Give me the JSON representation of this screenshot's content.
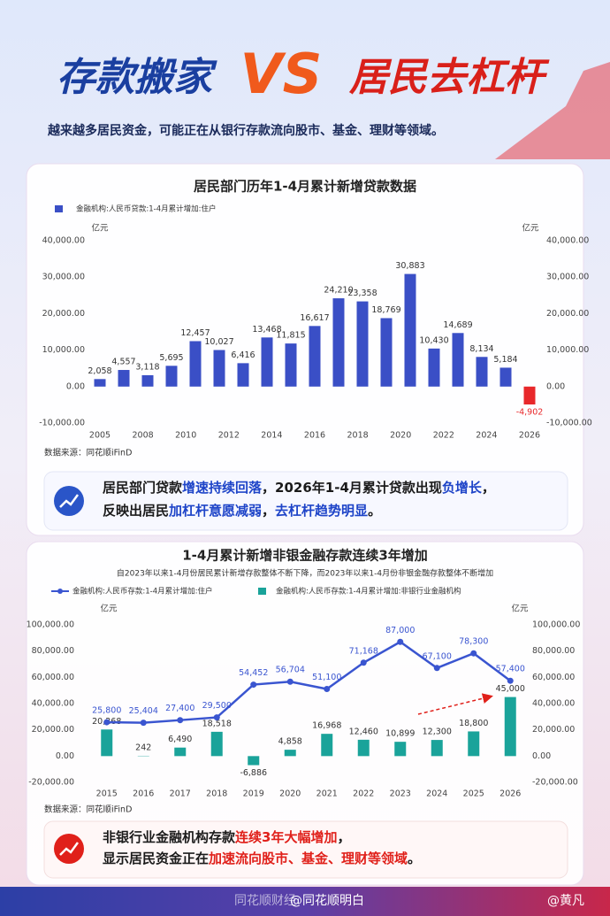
{
  "header": {
    "title_left": "存款搬家",
    "vs": "VS",
    "title_right": "居民去杠杆",
    "subtitle": "越来越多居民资金，可能正在从银行存款流向股市、基金、理财等领域。"
  },
  "chart_data": [
    {
      "type": "bar",
      "title": "居民部门历年1-4月累计新增贷款数据",
      "xticks": [
        "2005",
        "2008",
        "2010",
        "2012",
        "2014",
        "2016",
        "2018",
        "2020",
        "2022",
        "2024",
        "2026"
      ],
      "series": [
        {
          "name": "金融机构:人民币贷款:1-4月累计增加:住户",
          "color": "#3a4fc6",
          "negative_color": "#e8282b",
          "values": [
            2058,
            4557,
            3118,
            5695,
            12457,
            10027,
            6416,
            13468,
            11815,
            16617,
            24210,
            23358,
            18769,
            30883,
            10430,
            14689,
            8134,
            5184,
            -4902
          ],
          "value_labels": [
            "2,058",
            "4,557",
            "3,118",
            "5,695",
            "12,457",
            "10,027",
            "6,416",
            "13,468",
            "11,815",
            "16,617",
            "24,210",
            "23,358",
            "18,769",
            "30,883",
            "10,430",
            "14,689",
            "8,134",
            "5,184",
            "-4,902"
          ]
        }
      ],
      "ylabel": "亿元",
      "y2label": "亿元",
      "ylim": [
        -10000,
        40000
      ],
      "yticks": [
        {
          "value": -10000,
          "label": "-10,000.00"
        },
        {
          "value": 0,
          "label": "0.00"
        },
        {
          "value": 10000,
          "label": "10,000.00"
        },
        {
          "value": 20000,
          "label": "20,000.00"
        },
        {
          "value": 30000,
          "label": "30,000.00"
        },
        {
          "value": 40000,
          "label": "40,000.00"
        }
      ],
      "y2lim": [
        -10000,
        40000
      ],
      "y2ticks": [
        {
          "value": -10000,
          "label": "-10,000.00"
        },
        {
          "value": 0,
          "label": "0.00"
        },
        {
          "value": 10000,
          "label": "10,000.00"
        },
        {
          "value": 20000,
          "label": "20,000.00"
        },
        {
          "value": 30000,
          "label": "30,000.00"
        },
        {
          "value": 40000,
          "label": "40,000.00"
        }
      ],
      "source": "数据来源：同花顺iFinD",
      "note": [
        [
          {
            "text": "居民部门贷款",
            "color": "#1a1a1a"
          },
          {
            "text": "增速持续回落",
            "color": "#1e44c8"
          },
          {
            "text": "，2026年1-4月累计贷款出现",
            "color": "#1a1a1a"
          },
          {
            "text": "负增长",
            "color": "#1e44c8"
          },
          {
            "text": "，",
            "color": "#1a1a1a"
          }
        ],
        [
          {
            "text": "反映出居民",
            "color": "#1a1a1a"
          },
          {
            "text": "加杠杆意愿减弱",
            "color": "#1e44c8"
          },
          {
            "text": "，",
            "color": "#1a1a1a"
          },
          {
            "text": "去杠杆趋势明显",
            "color": "#1e44c8"
          },
          {
            "text": "。",
            "color": "#1a1a1a"
          }
        ]
      ],
      "note_icon_color": "#2a55c8"
    },
    {
      "type": "combo",
      "title": "1-4月累计新增非银金融存款连续3年增加",
      "subtitle": "自2023年以来1-4月份居民累计新增存款整体不断下降，而2023年以来1-4月份非银金融存款整体不断增加",
      "categories": [
        "2015",
        "2016",
        "2017",
        "2018",
        "2019",
        "2020",
        "2021",
        "2022",
        "2023",
        "2024",
        "2025",
        "2026"
      ],
      "series": [
        {
          "name": "金融机构:人民币存款:1-4月累计增加:住户",
          "type": "line",
          "color": "#3a55d0",
          "values": [
            25800,
            25404,
            27400,
            29500,
            54452,
            56704,
            51100,
            71168,
            87000,
            67100,
            78300,
            57400
          ],
          "value_labels": [
            "25,800",
            "25,404",
            "27,400",
            "29,500",
            "54,452",
            "56,704",
            "51,100",
            "71,168",
            "87,000",
            "67,100",
            "78,300",
            "57,400"
          ]
        },
        {
          "name": "金融机构:人民币存款:1-4月累计增加:非银行业金融机构",
          "type": "bar",
          "color": "#1aa39a",
          "values": [
            20268,
            242,
            6490,
            18518,
            -6886,
            4858,
            16968,
            12460,
            10899,
            12300,
            18800,
            45000
          ],
          "value_labels": [
            "20,268",
            "242",
            "6,490",
            "18,518",
            "-6,886",
            "4,858",
            "16,968",
            "12,460",
            "10,899",
            "12,300",
            "18,800",
            "45,000"
          ]
        }
      ],
      "ylabel": "亿元",
      "y2label": "亿元",
      "ylim": [
        -20000,
        100000
      ],
      "yticks": [
        {
          "value": -20000,
          "label": "-20,000.00"
        },
        {
          "value": 0,
          "label": "0.00"
        },
        {
          "value": 20000,
          "label": "20,000.00"
        },
        {
          "value": 40000,
          "label": "40,000.00"
        },
        {
          "value": 60000,
          "label": "60,000.00"
        },
        {
          "value": 80000,
          "label": "80,000.00"
        },
        {
          "value": 100000,
          "label": "100,000.00"
        }
      ],
      "y2lim": [
        -20000,
        100000
      ],
      "y2ticks": [
        {
          "value": -20000,
          "label": "-20,000.00"
        },
        {
          "value": 0,
          "label": "0.00"
        },
        {
          "value": 20000,
          "label": "20,000.00"
        },
        {
          "value": 40000,
          "label": "40,000.00"
        },
        {
          "value": 60000,
          "label": "60,000.00"
        },
        {
          "value": 80000,
          "label": "80,000.00"
        },
        {
          "value": 100000,
          "label": "100,000.00"
        }
      ],
      "source": "数据来源：同花顺iFinD",
      "note": [
        [
          {
            "text": "非银行业金融机构存款",
            "color": "#1a1a1a"
          },
          {
            "text": "连续3年大幅增加",
            "color": "#e0201a"
          },
          {
            "text": "，",
            "color": "#1a1a1a"
          }
        ],
        [
          {
            "text": "显示居民资金正在",
            "color": "#1a1a1a"
          },
          {
            "text": "加速流向股市、基金、理财等领域",
            "color": "#e0201a"
          },
          {
            "text": "。",
            "color": "#1a1a1a"
          }
        ]
      ],
      "note_icon_color": "#e0201a"
    }
  ],
  "footer": {
    "left": "同花顺财经",
    "middle": "@同花顺明白",
    "right": "@黄凡"
  }
}
